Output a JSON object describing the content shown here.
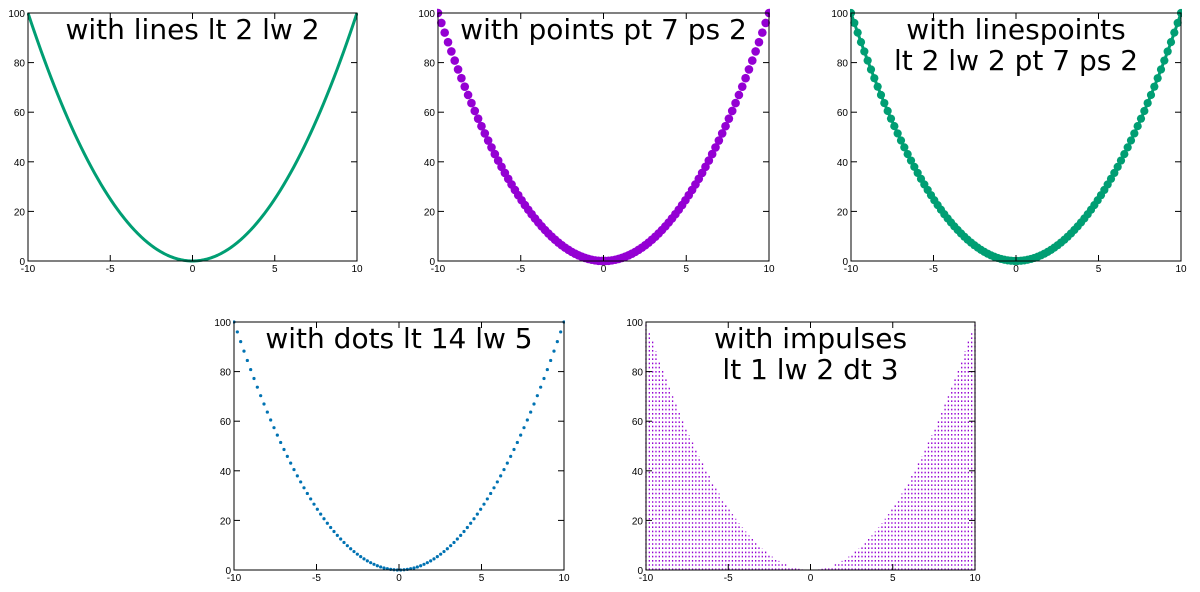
{
  "chart_data": [
    {
      "type": "line",
      "title": "with lines lt 2 lw 2",
      "style": "lines",
      "color": "#009e73",
      "xlim": [
        -10,
        10
      ],
      "ylim": [
        0,
        100
      ],
      "xticks": [
        "-10",
        "-5",
        "0",
        "5",
        "10"
      ],
      "yticks": [
        "0",
        "20",
        "40",
        "60",
        "80",
        "100"
      ],
      "function": "x**2",
      "x": [
        -10,
        -8,
        -6,
        -4,
        -2,
        0,
        2,
        4,
        6,
        8,
        10
      ],
      "y": [
        100,
        64,
        36,
        16,
        4,
        0,
        4,
        16,
        36,
        64,
        100
      ],
      "samples": 100,
      "grid": false
    },
    {
      "type": "scatter",
      "title": "with points pt 7 ps 2",
      "style": "points",
      "color": "#9400d3",
      "xlim": [
        -10,
        10
      ],
      "ylim": [
        0,
        100
      ],
      "xticks": [
        "-10",
        "-5",
        "0",
        "5",
        "10"
      ],
      "yticks": [
        "0",
        "20",
        "40",
        "60",
        "80",
        "100"
      ],
      "function": "x**2",
      "x": [
        -10,
        -8,
        -6,
        -4,
        -2,
        0,
        2,
        4,
        6,
        8,
        10
      ],
      "y": [
        100,
        64,
        36,
        16,
        4,
        0,
        4,
        16,
        36,
        64,
        100
      ],
      "samples": 100,
      "grid": false
    },
    {
      "type": "line",
      "title": "with linespoints\nlt 2 lw 2 pt 7 ps 2",
      "style": "linespoints",
      "color": "#009e73",
      "xlim": [
        -10,
        10
      ],
      "ylim": [
        0,
        100
      ],
      "xticks": [
        "-10",
        "-5",
        "0",
        "5",
        "10"
      ],
      "yticks": [
        "0",
        "20",
        "40",
        "60",
        "80",
        "100"
      ],
      "function": "x**2",
      "x": [
        -10,
        -8,
        -6,
        -4,
        -2,
        0,
        2,
        4,
        6,
        8,
        10
      ],
      "y": [
        100,
        64,
        36,
        16,
        4,
        0,
        4,
        16,
        36,
        64,
        100
      ],
      "samples": 100,
      "grid": false
    },
    {
      "type": "scatter",
      "title": "with dots lt 14 lw 5",
      "style": "dots",
      "color": "#0072b2",
      "xlim": [
        -10,
        10
      ],
      "ylim": [
        0,
        100
      ],
      "xticks": [
        "-10",
        "-5",
        "0",
        "5",
        "10"
      ],
      "yticks": [
        "0",
        "20",
        "40",
        "60",
        "80",
        "100"
      ],
      "function": "x**2",
      "x": [
        -10,
        -8,
        -6,
        -4,
        -2,
        0,
        2,
        4,
        6,
        8,
        10
      ],
      "y": [
        100,
        64,
        36,
        16,
        4,
        0,
        4,
        16,
        36,
        64,
        100
      ],
      "samples": 100,
      "grid": false
    },
    {
      "type": "bar",
      "title": "with impulses\nlt 1 lw 2 dt 3",
      "style": "impulses",
      "color": "#9400d3",
      "xlim": [
        -10,
        10
      ],
      "ylim": [
        0,
        100
      ],
      "xticks": [
        "-10",
        "-5",
        "0",
        "5",
        "10"
      ],
      "yticks": [
        "0",
        "20",
        "40",
        "60",
        "80",
        "100"
      ],
      "function": "x**2",
      "x": [
        -10,
        -8,
        -6,
        -4,
        -2,
        0,
        2,
        4,
        6,
        8,
        10
      ],
      "y": [
        100,
        64,
        36,
        16,
        4,
        0,
        4,
        16,
        36,
        64,
        100
      ],
      "samples": 100,
      "grid": false
    }
  ]
}
